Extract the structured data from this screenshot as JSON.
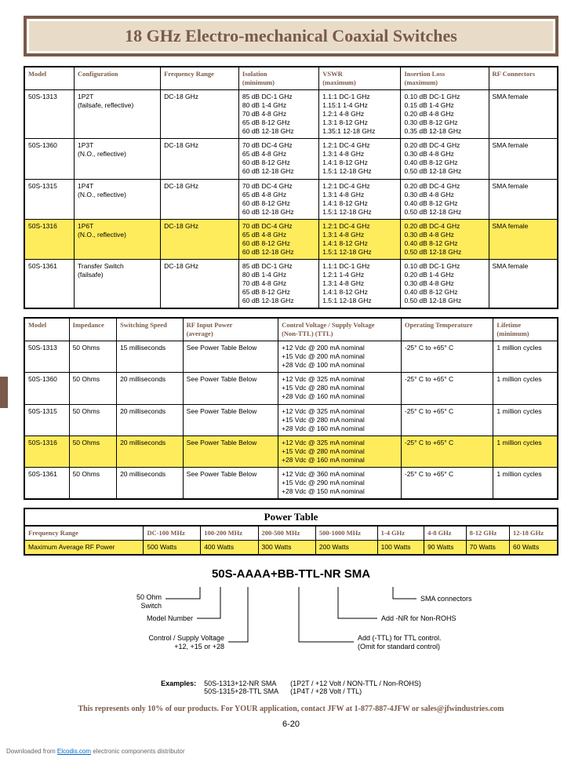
{
  "title": "18 GHz Electro-mechanical Coaxial Switches",
  "table1": {
    "headers": [
      "Model",
      "Configuration",
      "Frequency Range",
      "Isolation (minimum)",
      "VSWR (maximum)",
      "Insertion Loss (maximum)",
      "RF Connectors"
    ],
    "rows": [
      {
        "model": "50S-1313",
        "config": "1P2T\n(failsafe, reflective)",
        "freq": "DC-18 GHz",
        "iso": "85 dB DC-1 GHz\n80 dB 1-4 GHz\n70 dB 4-8 GHz\n65 dB 8-12 GHz\n60 dB 12-18 GHz",
        "vswr": "1.1:1 DC-1 GHz\n1.15:1 1-4 GHz\n1.2:1 4-8 GHz\n1.3:1 8-12 GHz\n1.35:1 12-18 GHz",
        "il": "0.10 dB DC-1 GHz\n0.15 dB 1-4 GHz\n0.20 dB 4-8 GHz\n0.30 dB 8-12 GHz\n0.35 dB 12-18 GHz",
        "rf": "SMA female",
        "hl": false
      },
      {
        "model": "50S-1360",
        "config": "1P3T\n(N.O., reflective)",
        "freq": "DC-18 GHz",
        "iso": "70 dB DC-4 GHz\n65 dB 4-8 GHz\n60 dB 8-12 GHz\n60 dB 12-18 GHz",
        "vswr": "1.2:1 DC-4 GHz\n1.3:1 4-8 GHz\n1.4:1 8-12 GHz\n1.5:1 12-18 GHz",
        "il": "0.20 dB DC-4 GHz\n0.30 dB 4-8 GHz\n0.40 dB 8-12 GHz\n0.50 dB 12-18 GHz",
        "rf": "SMA female",
        "hl": false
      },
      {
        "model": "50S-1315",
        "config": "1P4T\n(N.O., reflective)",
        "freq": "DC-18 GHz",
        "iso": "70 dB DC-4 GHz\n65 dB 4-8 GHz\n60 dB 8-12 GHz\n60 dB 12-18 GHz",
        "vswr": "1.2:1 DC-4 GHz\n1.3:1 4-8 GHz\n1.4:1 8-12 GHz\n1.5:1 12-18 GHz",
        "il": "0.20 dB DC-4 GHz\n0.30 dB 4-8 GHz\n0.40 dB 8-12 GHz\n0.50 dB 12-18 GHz",
        "rf": "SMA female",
        "hl": false
      },
      {
        "model": "50S-1316",
        "config": "1P6T\n(N.O., reflective)",
        "freq": "DC-18 GHz",
        "iso": "70 dB DC-4 GHz\n65 dB 4-8 GHz\n60 dB 8-12 GHz\n60 dB 12-18 GHz",
        "vswr": "1.2:1 DC-4 GHz\n1.3:1 4-8 GHz\n1.4:1 8-12 GHz\n1.5:1 12-18 GHz",
        "il": "0.20 dB DC-4 GHz\n0.30 dB 4-8 GHz\n0.40 dB 8-12 GHz\n0.50 dB 12-18 GHz",
        "rf": "SMA female",
        "hl": true
      },
      {
        "model": "50S-1361",
        "config": "Transfer Switch\n(failsafe)",
        "freq": "DC-18 GHz",
        "iso": "85 dB DC-1 GHz\n80 dB 1-4 GHz\n70 dB 4-8 GHz\n65 dB 8-12 GHz\n60 dB 12-18 GHz",
        "vswr": "1.1:1 DC-1 GHz\n1.2:1 1-4 GHz\n1.3:1 4-8 GHz\n1.4:1 8-12 GHz\n1.5:1 12-18 GHz",
        "il": "0.10 dB DC-1 GHz\n0.20 dB 1-4 GHz\n0.30 dB 4-8 GHz\n0.40 dB 8-12 GHz\n0.50 dB 12-18 GHz",
        "rf": "SMA female",
        "hl": false
      }
    ]
  },
  "table2": {
    "headers": [
      "Model",
      "Impedance",
      "Switching Speed",
      "RF Input Power (average)",
      "Control Voltage / Supply Voltage (Non-TTL)            (TTL)",
      "Operating Temperature",
      "Lifetime (minimum)"
    ],
    "rows": [
      {
        "model": "50S-1313",
        "imp": "50 Ohms",
        "speed": "15 milliseconds",
        "power": "See Power Table Below",
        "volt": "+12 Vdc @ 200 mA nominal\n+15 Vdc @ 200 mA nominal\n+28 Vdc @ 100 mA nominal",
        "temp": "-25° C to +65° C",
        "life": "1 million cycles",
        "hl": false
      },
      {
        "model": "50S-1360",
        "imp": "50 Ohms",
        "speed": "20 milliseconds",
        "power": "See Power Table Below",
        "volt": "+12 Vdc @ 325 mA nominal\n+15 Vdc @ 280 mA nominal\n+28 Vdc @ 160 mA nominal",
        "temp": "-25° C to +65° C",
        "life": "1 million cycles",
        "hl": false
      },
      {
        "model": "50S-1315",
        "imp": "50 Ohms",
        "speed": "20 milliseconds",
        "power": "See Power Table Below",
        "volt": "+12 Vdc @ 325 mA nominal\n+15 Vdc @ 280 mA nominal\n+28 Vdc @ 160 mA nominal",
        "temp": "-25° C to +65° C",
        "life": "1 million cycles",
        "hl": false
      },
      {
        "model": "50S-1316",
        "imp": "50 Ohms",
        "speed": "20 milliseconds",
        "power": "See Power Table Below",
        "volt": "+12 Vdc @ 325 mA nominal\n+15 Vdc @ 280 mA nominal\n+28 Vdc @ 160 mA nominal",
        "temp": "-25° C to +65° C",
        "life": "1 million cycles",
        "hl": true
      },
      {
        "model": "50S-1361",
        "imp": "50 Ohms",
        "speed": "20 milliseconds",
        "power": "See Power Table Below",
        "volt": "+12 Vdc @ 360 mA nominal\n+15 Vdc @ 290 mA nominal\n+28 Vdc @ 150 mA nominal",
        "temp": "-25° C to +65° C",
        "life": "1 million cycles",
        "hl": false
      }
    ]
  },
  "power_title": "Power Table",
  "power_table": {
    "headers": [
      "Frequency Range",
      "DC-100 MHz",
      "100-200 MHz",
      "200-500 MHz",
      "500-1000 MHz",
      "1-4 GHz",
      "4-8 GHz",
      "8-12 GHz",
      "12-18 GHz"
    ],
    "row_label": "Maximum Average RF Power",
    "values": [
      "500 Watts",
      "400 Watts",
      "300 Watts",
      "200 Watts",
      "100 Watts",
      "90 Watts",
      "70 Watts",
      "60 Watts"
    ]
  },
  "part": {
    "title": "50S-AAAA+BB-TTL-NR  SMA",
    "left": [
      "50 Ohm\nSwitch",
      "Model Number",
      "Control / Supply Voltage\n+12, +15 or +28"
    ],
    "right": [
      "SMA connectors",
      "Add -NR for Non-ROHS",
      "Add (-TTL) for TTL control.\n(Omit for standard control)"
    ],
    "examples_label": "Examples:",
    "ex1a": "50S-1313+12-NR SMA",
    "ex1b": "(1P2T / +12 Volt / NON-TTL / Non-ROHS)",
    "ex2a": "50S-1315+28-TTL SMA",
    "ex2b": "(1P4T / +28 Volt / TTL)"
  },
  "footer_note": "This represents only 10% of our products. For YOUR application, contact JFW at 1-877-887-4JFW or sales@jfwindustries.com",
  "page_num": "6-20",
  "download_prefix": "Downloaded from ",
  "download_link": "Elcodis.com",
  "download_suffix": " electronic components distributor"
}
